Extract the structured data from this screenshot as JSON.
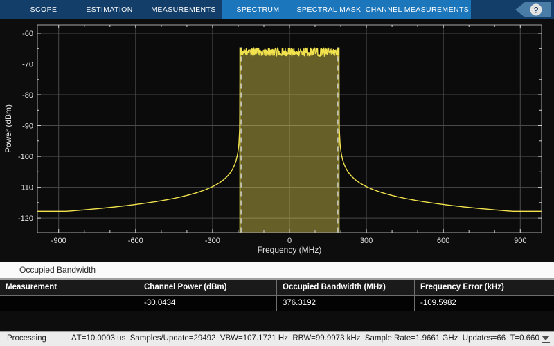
{
  "toolbar": {
    "tabs": [
      {
        "label": "SCOPE",
        "active": false,
        "width": 86
      },
      {
        "label": "ESTIMATION",
        "active": false,
        "width": 104
      },
      {
        "label": "MEASUREMENTS",
        "active": false,
        "width": 110
      },
      {
        "label": "SPECTRUM",
        "active": true,
        "width": 105
      },
      {
        "label": "SPECTRAL MASK",
        "active": true,
        "width": 100
      },
      {
        "label": "CHANNEL MEASUREMENTS",
        "active": true,
        "width": 155
      }
    ],
    "help_label": "?",
    "colors": {
      "bar": "#133e69",
      "active_tab": "#1b76bc",
      "badge": "#4a7ca8"
    }
  },
  "chart_data": {
    "type": "line",
    "title": "",
    "xlabel": "Frequency (MHz)",
    "ylabel": "Power (dBm)",
    "xlim": [
      -983,
      983
    ],
    "ylim": [
      -124.7,
      -57.3
    ],
    "x_ticks": [
      -900,
      -600,
      -300,
      0,
      300,
      600,
      900
    ],
    "y_ticks": [
      -60,
      -70,
      -80,
      -90,
      -100,
      -110,
      -120
    ],
    "x_minor_step": 100,
    "y_minor_step": 5,
    "grid": true,
    "legend": "none",
    "colors": {
      "plot_bg": "#0b0b0b",
      "grid": "#4a4a4a",
      "border": "#a8a8a8",
      "tick": "#d0d0d0",
      "label": "#e6e6e6",
      "trace": "#f2e34e",
      "obw_fill": "rgba(240,226,85,0.40)",
      "obw_dash": "#bcbcbc"
    },
    "signal": {
      "description": "Flat-top noisy channel with resonance skirts",
      "in_band_top_dbm": -64.6,
      "in_band_noise_pp_db": 2.9,
      "band_edges_mhz": [
        -193,
        193
      ],
      "skirt_db_formula": "P = -89.5 - 10*log10(|f|-193)",
      "noise_floor_dbm": -117.8
    },
    "occupied_bw": {
      "edges_mhz": [
        -188.3,
        188.0
      ],
      "value_mhz": 376.3192
    }
  },
  "measurement_panel": {
    "title": "Occupied Bandwidth",
    "table": {
      "headers": [
        "Measurement",
        "Channel Power (dBm)",
        "Occupied Bandwidth (MHz)",
        "Frequency Error (kHz)"
      ],
      "rows": [
        [
          "",
          "-30.0434",
          "376.3192",
          "-109.5982"
        ]
      ]
    }
  },
  "status_bar": {
    "state": "Processing",
    "metrics": "ΔT=10.0003 us  Samples/Update=29492  VBW=107.1721 Hz  RBW=99.9973 kHz  Sample Rate=1.9661 GHz  Updates=66  T=0.660"
  }
}
